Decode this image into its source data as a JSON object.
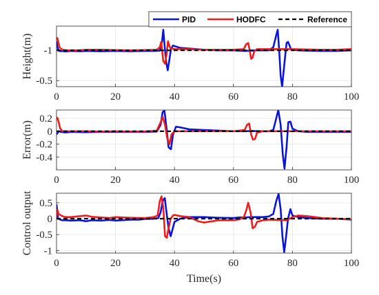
{
  "chart_data": [
    {
      "type": "line",
      "ylabel": "Height(m)",
      "xlabel": "",
      "xlim": [
        0,
        100
      ],
      "ylim": [
        -1.4,
        -0.4
      ],
      "y_reversed": true,
      "grid": true,
      "xticks": [
        0,
        20,
        40,
        60,
        80,
        100
      ],
      "yticks": [
        -0.5,
        -1
      ],
      "ytick_labels": [
        "-0.5",
        "-1"
      ],
      "legend": {
        "placement": "top-right",
        "entries": [
          "PID",
          "HODFC",
          "Reference"
        ]
      },
      "series": [
        {
          "name": "PID",
          "x": [
            0,
            0.3,
            0.8,
            1.5,
            2,
            3,
            5,
            8,
            10,
            15,
            20,
            25,
            30,
            33,
            35,
            35.8,
            36.2,
            36.7,
            37.2,
            37.7,
            38.2,
            38.8,
            39.5,
            40,
            42,
            45,
            50,
            55,
            60,
            64,
            66,
            68,
            70,
            72,
            73.5,
            74.5,
            75,
            75.5,
            76,
            76.5,
            77.2,
            78,
            78.5,
            79,
            79.5,
            80,
            82,
            85,
            90,
            95,
            100
          ],
          "y": [
            -1.15,
            -1.05,
            -0.99,
            -0.985,
            -0.99,
            -0.98,
            -0.99,
            -0.985,
            -0.99,
            -0.985,
            -0.99,
            -0.985,
            -0.99,
            -0.99,
            -0.995,
            -1.15,
            -1.34,
            -1.05,
            -0.8,
            -0.67,
            -0.82,
            -1.02,
            -1.08,
            -1.07,
            -1.04,
            -1.03,
            -1.01,
            -1.0,
            -1.0,
            -0.99,
            -0.995,
            -1.0,
            -1.0,
            -1.0,
            -1.05,
            -1.25,
            -1.34,
            -1.0,
            -0.58,
            -0.4,
            -0.75,
            -1.12,
            -1.14,
            -1.08,
            -1.02,
            -1.01,
            -1.0,
            -0.995,
            -0.99,
            -0.99,
            -1.0
          ]
        },
        {
          "name": "HODFC",
          "x": [
            0,
            0.3,
            0.6,
            1,
            2,
            3,
            5,
            8,
            10,
            15,
            20,
            25,
            30,
            34,
            35,
            35.5,
            36.2,
            36.8,
            37.3,
            37.8,
            38.5,
            40,
            45,
            50,
            55,
            60,
            63.5,
            64.3,
            65,
            65.5,
            66,
            66.5,
            67,
            68,
            70,
            75,
            80,
            85,
            90,
            95,
            100
          ],
          "y": [
            -1.21,
            -1.2,
            -1.14,
            -1.05,
            -1.01,
            -1.0,
            -1.0,
            -1.0,
            -1.01,
            -1.01,
            -1.005,
            -1.0,
            -1.005,
            -1.01,
            -1.05,
            -1.14,
            -0.82,
            -0.78,
            -0.93,
            -1.15,
            -1.04,
            -1.02,
            -1.02,
            -1.01,
            -1.01,
            -1.01,
            -1.02,
            -1.1,
            -1.12,
            -1.0,
            -0.86,
            -0.88,
            -0.98,
            -1.02,
            -1.02,
            -1.02,
            -1.02,
            -1.015,
            -1.01,
            -1.01,
            -1.02
          ]
        },
        {
          "name": "Reference",
          "x": [
            0,
            100
          ],
          "y": [
            -1,
            -1
          ]
        }
      ]
    },
    {
      "type": "line",
      "ylabel": "Error(m)",
      "xlabel": "",
      "xlim": [
        0,
        100
      ],
      "ylim": [
        -0.6,
        0.33
      ],
      "grid": true,
      "xticks": [
        0,
        20,
        40,
        60,
        80,
        100
      ],
      "yticks": [
        0.2,
        0,
        -0.2,
        -0.4
      ],
      "ytick_labels": [
        "0.2",
        "0",
        "-0.2",
        "-0.4"
      ],
      "series": [
        {
          "name": "PID",
          "x": [
            0,
            0.3,
            0.8,
            1.5,
            3,
            5,
            10,
            15,
            20,
            25,
            30,
            34,
            35.3,
            36,
            36.6,
            37.3,
            38,
            38.8,
            39.5,
            40.5,
            42,
            45,
            50,
            55,
            60,
            64,
            66,
            70,
            72,
            73.5,
            74.5,
            75.2,
            76,
            76.7,
            77.3,
            78,
            78.6,
            79.3,
            80,
            82,
            85,
            90,
            95,
            100
          ],
          "y": [
            -0.05,
            -0.03,
            0.0,
            -0.01,
            -0.02,
            -0.01,
            -0.015,
            -0.01,
            -0.01,
            -0.01,
            -0.01,
            -0.005,
            0.1,
            0.3,
            0.32,
            0.05,
            -0.25,
            -0.28,
            -0.05,
            0.07,
            0.06,
            0.03,
            0.02,
            0.01,
            0.0,
            0.0,
            0.005,
            0.0,
            0.0,
            0.02,
            0.2,
            0.33,
            0.1,
            -0.35,
            -0.58,
            -0.25,
            0.14,
            0.15,
            0.04,
            0.0,
            -0.01,
            -0.01,
            -0.01,
            -0.01
          ]
        },
        {
          "name": "HODFC",
          "x": [
            0,
            0.3,
            0.7,
            1.2,
            2,
            3,
            5,
            10,
            15,
            20,
            25,
            30,
            34,
            35.2,
            36,
            36.8,
            37.5,
            38.3,
            39,
            40,
            45,
            50,
            55,
            60,
            63.8,
            64.6,
            65.3,
            66,
            66.6,
            67.3,
            68,
            70,
            75,
            80,
            85,
            90,
            95,
            100
          ],
          "y": [
            0.22,
            0.2,
            0.15,
            0.05,
            0.0,
            0.0,
            0.0,
            0.0,
            -0.005,
            0.0,
            -0.005,
            -0.005,
            0.01,
            0.13,
            0.22,
            0.1,
            -0.1,
            -0.2,
            -0.05,
            0.0,
            0.0,
            0.0,
            0.0,
            0.0,
            0.02,
            0.1,
            0.12,
            -0.05,
            -0.13,
            -0.12,
            -0.02,
            0.0,
            0.0,
            0.0,
            0.0,
            0.0,
            0.0,
            0.0
          ]
        },
        {
          "name": "Reference",
          "x": [
            0,
            100
          ],
          "y": [
            0,
            0
          ]
        }
      ]
    },
    {
      "type": "line",
      "ylabel": "Control output",
      "xlabel": "Time(s)",
      "xlim": [
        0,
        100
      ],
      "ylim": [
        -1.08,
        0.8
      ],
      "grid": true,
      "xticks": [
        0,
        20,
        40,
        60,
        80,
        100
      ],
      "yticks": [
        0.5,
        0,
        -0.5,
        -1
      ],
      "ytick_labels": [
        "0.5",
        "0",
        "-0.5",
        "-1"
      ],
      "series": [
        {
          "name": "PID",
          "x": [
            0,
            0.2,
            0.5,
            1,
            2,
            3,
            5,
            8,
            10,
            12,
            15,
            18,
            20,
            22,
            25,
            28,
            30,
            33,
            34.5,
            35.3,
            36,
            36.7,
            37.3,
            38,
            38.7,
            39.3,
            40,
            42,
            45,
            50,
            55,
            60,
            62,
            64,
            66,
            68,
            70,
            72,
            73.5,
            74.5,
            75.3,
            76,
            76.6,
            77.2,
            77.8,
            78.5,
            79.3,
            80,
            82,
            85,
            90,
            95,
            100
          ],
          "y": [
            0.45,
            0.3,
            0.0,
            -0.02,
            -0.05,
            -0.05,
            -0.06,
            -0.05,
            -0.08,
            -0.05,
            -0.06,
            -0.04,
            -0.06,
            -0.05,
            -0.03,
            -0.03,
            -0.01,
            0.0,
            0.02,
            0.2,
            0.55,
            0.65,
            0.2,
            -0.3,
            -0.55,
            -0.35,
            -0.1,
            0.0,
            0.05,
            0.05,
            0.03,
            0.02,
            0.04,
            0.04,
            0.05,
            0.05,
            0.05,
            0.07,
            0.15,
            0.55,
            0.78,
            0.3,
            -0.55,
            -1.05,
            -0.6,
            0.0,
            0.3,
            0.1,
            0.05,
            0.02,
            0.0,
            0.0,
            -0.03
          ]
        },
        {
          "name": "HODFC",
          "x": [
            0,
            0.3,
            0.7,
            1.2,
            2,
            3,
            5,
            8,
            10,
            12,
            15,
            18,
            20,
            25,
            30,
            33,
            34.3,
            35,
            35.6,
            36.2,
            36.8,
            37.4,
            38,
            38.7,
            39.5,
            40,
            42,
            45,
            48,
            50,
            55,
            60,
            62,
            63.5,
            64.3,
            65,
            65.8,
            66.5,
            67.3,
            68,
            70,
            72,
            75,
            78,
            80,
            82,
            85,
            90,
            95,
            100
          ],
          "y": [
            0.05,
            0.28,
            0.15,
            0.12,
            0.08,
            0.05,
            0.05,
            0.08,
            0.1,
            0.06,
            0.04,
            0.02,
            0.05,
            0.03,
            0.02,
            0.05,
            0.1,
            0.55,
            0.7,
            0.35,
            -0.55,
            -0.6,
            -0.3,
            0.0,
            0.1,
            0.12,
            0.08,
            0.05,
            -0.08,
            -0.12,
            -0.05,
            -0.05,
            -0.02,
            0.05,
            0.25,
            0.5,
            0.2,
            -0.3,
            -0.25,
            -0.1,
            -0.05,
            -0.03,
            -0.04,
            -0.05,
            0.05,
            0.1,
            0.08,
            0.02,
            0.0,
            -0.02
          ]
        },
        {
          "name": "Reference",
          "x": [
            0,
            100
          ],
          "y": [
            0,
            0
          ]
        }
      ]
    }
  ],
  "colors": {
    "PID": "#0a14d8",
    "HODFC": "#ee1c1c",
    "Reference": "#000000"
  }
}
